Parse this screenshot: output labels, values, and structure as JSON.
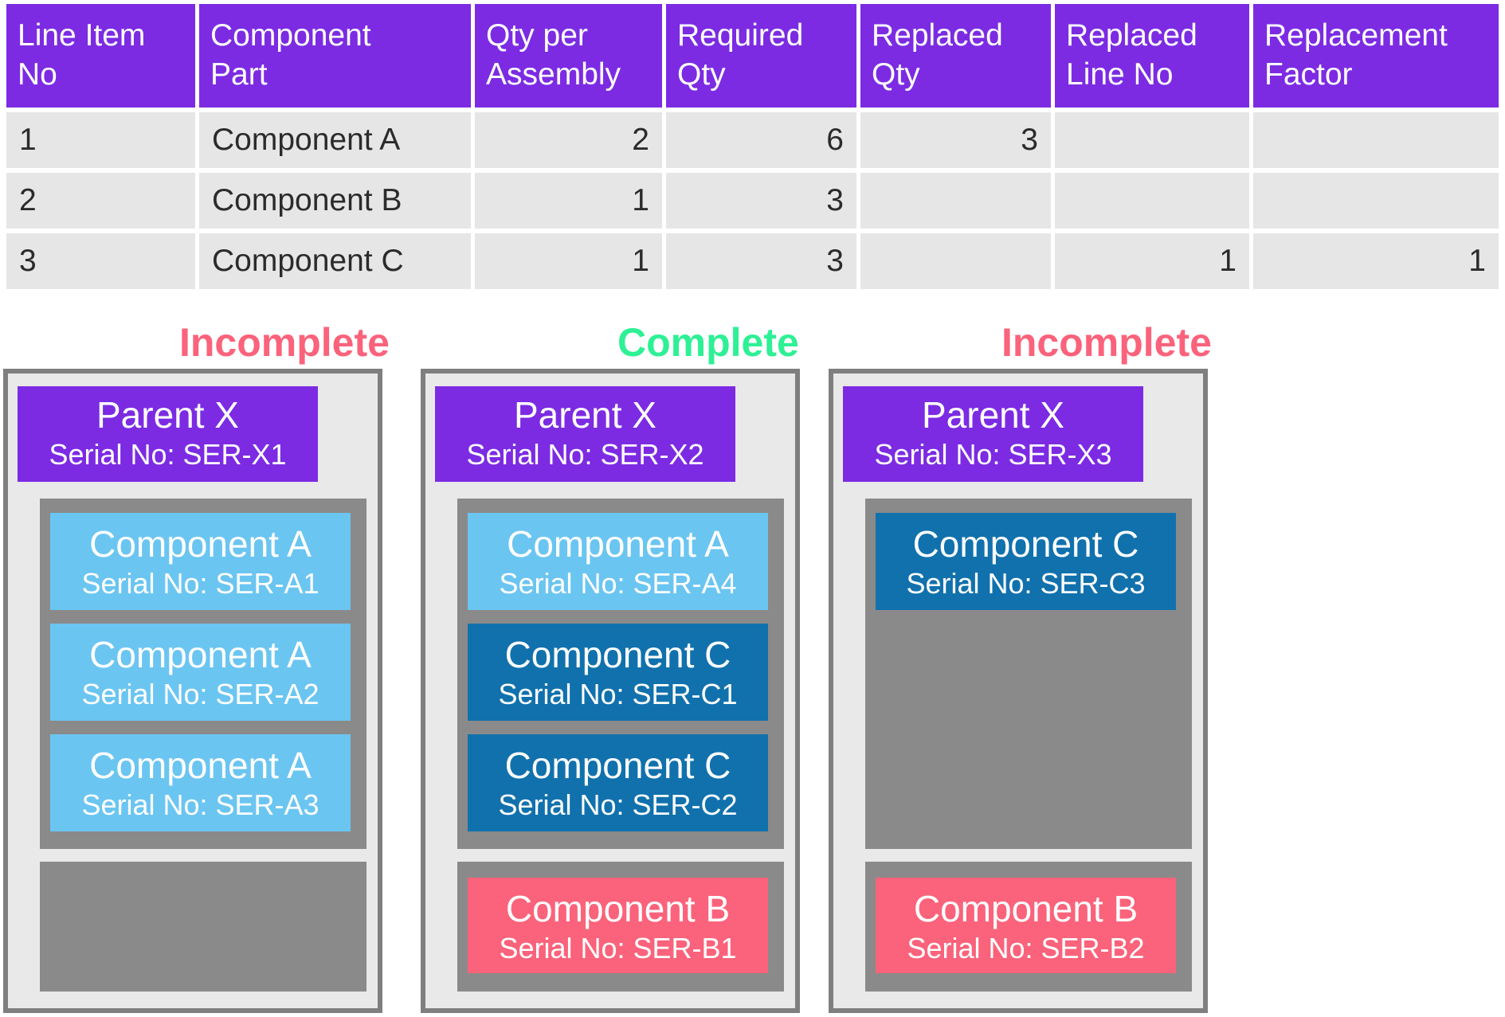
{
  "colors": {
    "purple": "#7C2BE3",
    "pink": "#FA637B",
    "green": "#2EF095",
    "light_blue": "#6BC5F1",
    "dark_blue": "#1171AD",
    "container_gray": "#8A8A8A",
    "panel_bg": "#E9E9E9",
    "panel_border": "#7F7F7F",
    "row_bg": "#E6E6E6",
    "row_text": "#2B2B2B",
    "header_text": "#FFFFFF"
  },
  "table": {
    "columns": [
      "Line Item\nNo",
      "Component\nPart",
      "Qty per\nAssembly",
      "Required\nQty",
      "Replaced\nQty",
      "Replaced\nLine No",
      "Replacement\nFactor"
    ],
    "rows": [
      [
        "1",
        "Component A",
        "2",
        "6",
        "3",
        "",
        ""
      ],
      [
        "2",
        "Component B",
        "1",
        "3",
        "",
        "",
        ""
      ],
      [
        "3",
        "Component C",
        "1",
        "3",
        "",
        "1",
        "1"
      ]
    ]
  },
  "panels": [
    {
      "status": "Incomplete",
      "status_color": "#FA637B",
      "parent": {
        "name": "Parent X",
        "serial": "Serial No: SER-X1"
      },
      "primary_slot": [
        {
          "name": "Component A",
          "serial": "Serial No: SER-A1",
          "color": "#6BC5F1"
        },
        {
          "name": "Component A",
          "serial": "Serial No: SER-A2",
          "color": "#6BC5F1"
        },
        {
          "name": "Component A",
          "serial": "Serial No: SER-A3",
          "color": "#6BC5F1"
        }
      ],
      "secondary_slot": []
    },
    {
      "status": "Complete",
      "status_color": "#2EF095",
      "parent": {
        "name": "Parent X",
        "serial": "Serial No: SER-X2"
      },
      "primary_slot": [
        {
          "name": "Component A",
          "serial": "Serial No: SER-A4",
          "color": "#6BC5F1"
        },
        {
          "name": "Component C",
          "serial": "Serial No: SER-C1",
          "color": "#1171AD"
        },
        {
          "name": "Component C",
          "serial": "Serial No: SER-C2",
          "color": "#1171AD"
        }
      ],
      "secondary_slot": [
        {
          "name": "Component B",
          "serial": "Serial No: SER-B1",
          "color": "#FA637B"
        }
      ]
    },
    {
      "status": "Incomplete",
      "status_color": "#FA637B",
      "parent": {
        "name": "Parent X",
        "serial": "Serial No: SER-X3"
      },
      "primary_slot": [
        {
          "name": "Component C",
          "serial": "Serial No: SER-C3",
          "color": "#1171AD"
        }
      ],
      "secondary_slot": [
        {
          "name": "Component B",
          "serial": "Serial No: SER-B2",
          "color": "#FA637B"
        }
      ]
    }
  ]
}
